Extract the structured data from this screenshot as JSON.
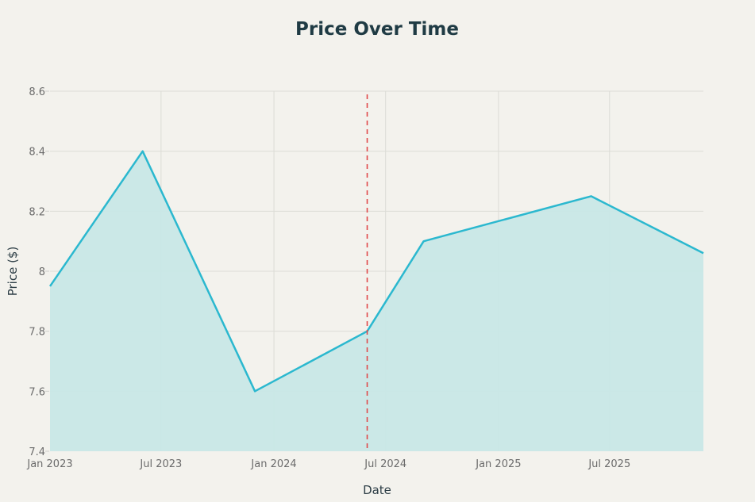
{
  "chart_data": {
    "type": "area",
    "title": "Price Over Time",
    "xlabel": "Date",
    "ylabel": "Price ($)",
    "ylim": [
      7.4,
      8.6
    ],
    "xlim": [
      "2023-01-01",
      "2025-12-01"
    ],
    "yticks": [
      7.4,
      7.6,
      7.8,
      8,
      8.2,
      8.4,
      8.6
    ],
    "ytick_labels": [
      "7.4",
      "7.6",
      "7.8",
      "8",
      "8.2",
      "8.4",
      "8.6"
    ],
    "xticks": [
      "2023-01-01",
      "2023-07-01",
      "2024-01-01",
      "2024-07-01",
      "2025-01-01",
      "2025-07-01"
    ],
    "xtick_labels": [
      "Jan 2023",
      "Jul 2023",
      "Jan 2024",
      "Jul 2024",
      "Jan 2025",
      "Jul 2025"
    ],
    "grid": true,
    "series": [
      {
        "name": "Price",
        "color": "#2bb8cf",
        "fill": "#c8e7e7",
        "x": [
          "2023-01-01",
          "2023-06-01",
          "2023-12-01",
          "2024-06-01",
          "2024-09-01",
          "2025-06-01",
          "2025-12-01"
        ],
        "y": [
          7.95,
          8.4,
          7.6,
          7.8,
          8.1,
          8.25,
          8.06
        ]
      }
    ],
    "annotations": [
      {
        "type": "vline",
        "x": "2024-06-01",
        "style": "dashed",
        "color": "#e0484a"
      }
    ]
  }
}
